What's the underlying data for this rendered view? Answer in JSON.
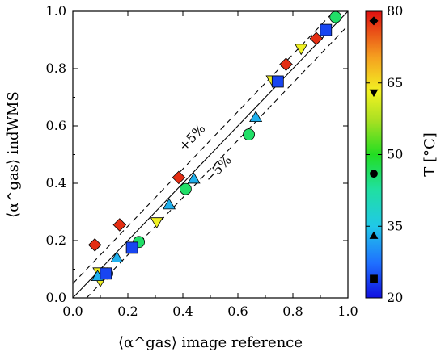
{
  "chart_data": {
    "type": "scatter",
    "xlabel": "⟨α^gas⟩ image reference",
    "ylabel": "⟨α^gas⟩ indWMS",
    "xlim": [
      0,
      1
    ],
    "ylim": [
      0,
      1
    ],
    "x_ticks": [
      "0.0",
      "0.2",
      "0.4",
      "0.6",
      "0.8",
      "1.0"
    ],
    "y_ticks": [
      "0.0",
      "0.2",
      "0.4",
      "0.6",
      "0.8",
      "1.0"
    ],
    "grid": false,
    "reference_lines": [
      {
        "label": "",
        "offset": 0,
        "style": "solid"
      },
      {
        "label": "+5%",
        "offset": 0.05,
        "style": "dashed"
      },
      {
        "label": "−5%",
        "offset": -0.05,
        "style": "dashed"
      }
    ],
    "colorbar": {
      "label": "T [°C]",
      "range": [
        20,
        80
      ],
      "ticks": [
        "20",
        "35",
        "50",
        "65",
        "80"
      ],
      "marker_legend": [
        {
          "shape": "square",
          "T": 24
        },
        {
          "shape": "triangle-up",
          "T": 33
        },
        {
          "shape": "circle",
          "T": 46
        },
        {
          "shape": "triangle-down",
          "T": 63
        },
        {
          "shape": "diamond",
          "T": 78
        }
      ]
    },
    "series": [
      {
        "marker": "diamond",
        "T": 78,
        "points": [
          [
            0.08,
            0.185
          ],
          [
            0.17,
            0.255
          ],
          [
            0.385,
            0.42
          ],
          [
            0.775,
            0.815
          ],
          [
            0.885,
            0.905
          ]
        ]
      },
      {
        "marker": "triangle-down",
        "T": 63,
        "points": [
          [
            0.095,
            0.09
          ],
          [
            0.1,
            0.06
          ],
          [
            0.305,
            0.265
          ],
          [
            0.725,
            0.76
          ],
          [
            0.83,
            0.87
          ]
        ]
      },
      {
        "marker": "circle",
        "T": 46,
        "points": [
          [
            0.125,
            0.085
          ],
          [
            0.24,
            0.195
          ],
          [
            0.41,
            0.38
          ],
          [
            0.64,
            0.57
          ],
          [
            0.955,
            0.98
          ]
        ]
      },
      {
        "marker": "triangle-up",
        "T": 33,
        "points": [
          [
            0.09,
            0.075
          ],
          [
            0.16,
            0.14
          ],
          [
            0.35,
            0.325
          ],
          [
            0.44,
            0.415
          ],
          [
            0.665,
            0.63
          ]
        ]
      },
      {
        "marker": "square",
        "T": 24,
        "points": [
          [
            0.12,
            0.085
          ],
          [
            0.215,
            0.175
          ],
          [
            0.745,
            0.755
          ],
          [
            0.92,
            0.935
          ]
        ]
      }
    ]
  }
}
